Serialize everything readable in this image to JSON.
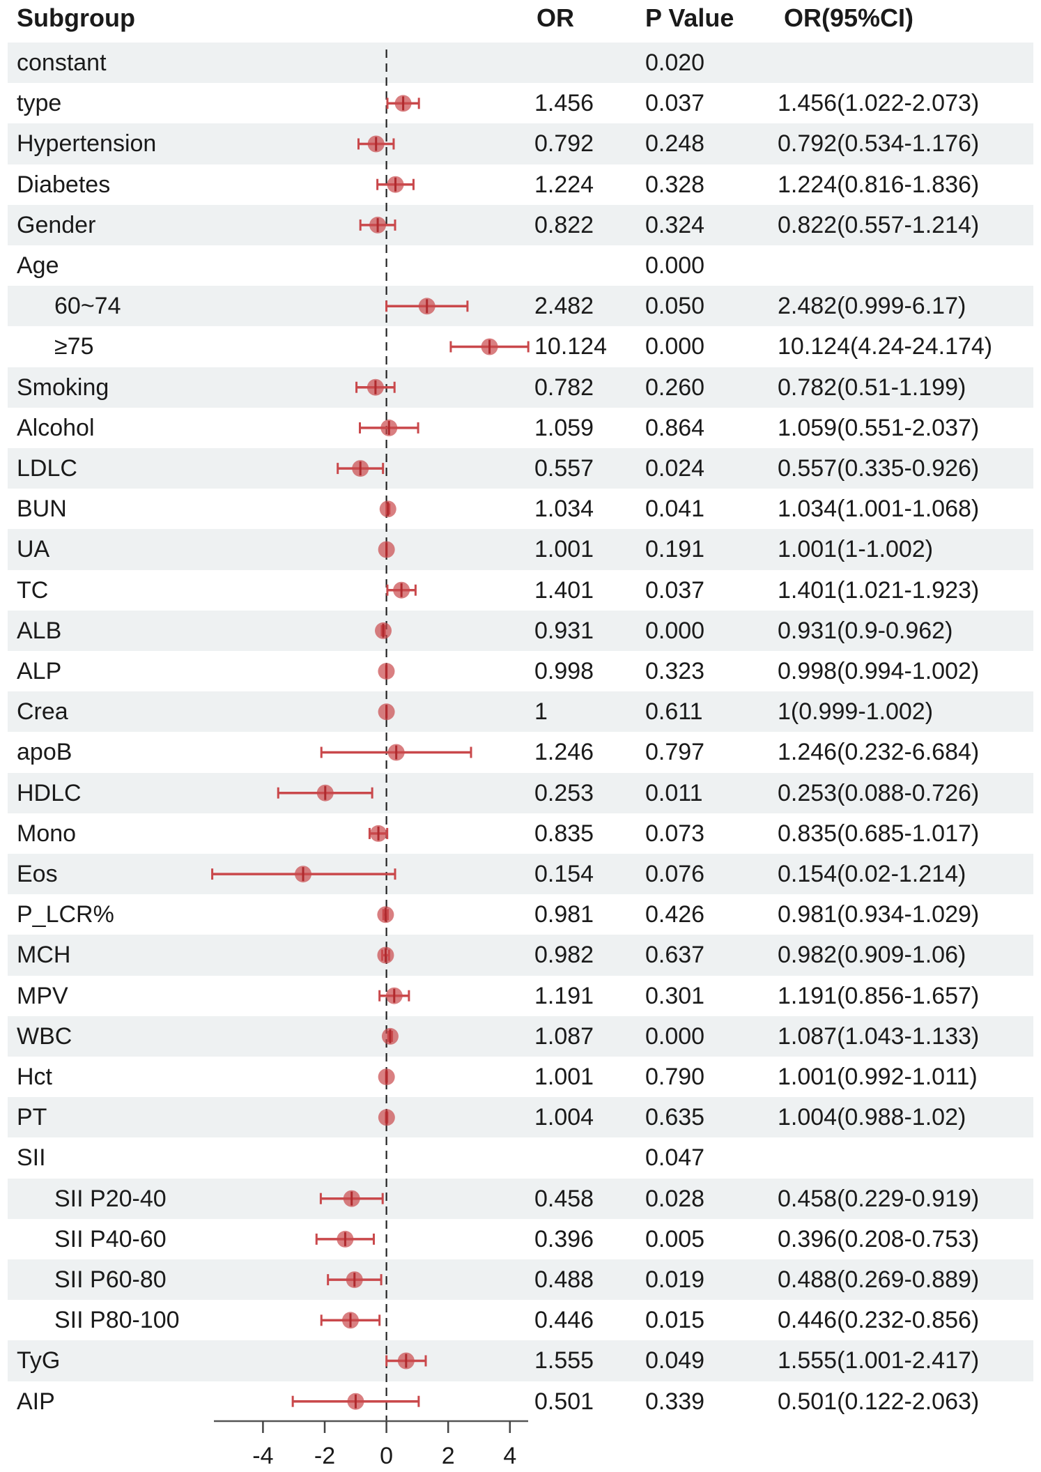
{
  "chart_data": {
    "type": "forest",
    "headers": {
      "subgroup": "Subgroup",
      "or": "OR",
      "p": "P Value",
      "ci": "OR(95%CI)"
    },
    "x_scale": "log2(OR)",
    "xticks": [
      "-4",
      "-2",
      "0",
      "2",
      "4"
    ],
    "reference_line": 0,
    "rows": [
      {
        "label": "constant",
        "indent": false,
        "or": "",
        "p": "0.020",
        "ci": "",
        "est": null,
        "lo": null,
        "hi": null
      },
      {
        "label": "type",
        "indent": false,
        "or": "1.456",
        "p": "0.037",
        "ci": "1.456(1.022-2.073)",
        "est": 1.456,
        "lo": 1.022,
        "hi": 2.073
      },
      {
        "label": "Hypertension",
        "indent": false,
        "or": "0.792",
        "p": "0.248",
        "ci": "0.792(0.534-1.176)",
        "est": 0.792,
        "lo": 0.534,
        "hi": 1.176
      },
      {
        "label": "Diabetes",
        "indent": false,
        "or": "1.224",
        "p": "0.328",
        "ci": "1.224(0.816-1.836)",
        "est": 1.224,
        "lo": 0.816,
        "hi": 1.836
      },
      {
        "label": "Gender",
        "indent": false,
        "or": "0.822",
        "p": "0.324",
        "ci": "0.822(0.557-1.214)",
        "est": 0.822,
        "lo": 0.557,
        "hi": 1.214
      },
      {
        "label": "Age",
        "indent": false,
        "or": "",
        "p": "0.000",
        "ci": "",
        "est": null,
        "lo": null,
        "hi": null
      },
      {
        "label": "60~74",
        "indent": true,
        "or": "2.482",
        "p": "0.050",
        "ci": "2.482(0.999-6.17)",
        "est": 2.482,
        "lo": 0.999,
        "hi": 6.17
      },
      {
        "label": "≥75",
        "indent": true,
        "or": "10.124",
        "p": "0.000",
        "ci": "10.124(4.24-24.174)",
        "est": 10.124,
        "lo": 4.24,
        "hi": 24.174
      },
      {
        "label": "Smoking",
        "indent": false,
        "or": "0.782",
        "p": "0.260",
        "ci": "0.782(0.51-1.199)",
        "est": 0.782,
        "lo": 0.51,
        "hi": 1.199
      },
      {
        "label": "Alcohol",
        "indent": false,
        "or": "1.059",
        "p": "0.864",
        "ci": "1.059(0.551-2.037)",
        "est": 1.059,
        "lo": 0.551,
        "hi": 2.037
      },
      {
        "label": "LDLC",
        "indent": false,
        "or": "0.557",
        "p": "0.024",
        "ci": "0.557(0.335-0.926)",
        "est": 0.557,
        "lo": 0.335,
        "hi": 0.926
      },
      {
        "label": "BUN",
        "indent": false,
        "or": "1.034",
        "p": "0.041",
        "ci": "1.034(1.001-1.068)",
        "est": 1.034,
        "lo": 1.001,
        "hi": 1.068
      },
      {
        "label": "UA",
        "indent": false,
        "or": "1.001",
        "p": "0.191",
        "ci": "1.001(1-1.002)",
        "est": 1.001,
        "lo": 1,
        "hi": 1.002
      },
      {
        "label": "TC",
        "indent": false,
        "or": "1.401",
        "p": "0.037",
        "ci": "1.401(1.021-1.923)",
        "est": 1.401,
        "lo": 1.021,
        "hi": 1.923
      },
      {
        "label": "ALB",
        "indent": false,
        "or": "0.931",
        "p": "0.000",
        "ci": "0.931(0.9-0.962)",
        "est": 0.931,
        "lo": 0.9,
        "hi": 0.962
      },
      {
        "label": "ALP",
        "indent": false,
        "or": "0.998",
        "p": "0.323",
        "ci": "0.998(0.994-1.002)",
        "est": 0.998,
        "lo": 0.994,
        "hi": 1.002
      },
      {
        "label": "Crea",
        "indent": false,
        "or": "1",
        "p": "0.611",
        "ci": "1(0.999-1.002)",
        "est": 1,
        "lo": 0.999,
        "hi": 1.002
      },
      {
        "label": "apoB",
        "indent": false,
        "or": "1.246",
        "p": "0.797",
        "ci": "1.246(0.232-6.684)",
        "est": 1.246,
        "lo": 0.232,
        "hi": 6.684
      },
      {
        "label": "HDLC",
        "indent": false,
        "or": "0.253",
        "p": "0.011",
        "ci": "0.253(0.088-0.726)",
        "est": 0.253,
        "lo": 0.088,
        "hi": 0.726
      },
      {
        "label": "Mono",
        "indent": false,
        "or": "0.835",
        "p": "0.073",
        "ci": "0.835(0.685-1.017)",
        "est": 0.835,
        "lo": 0.685,
        "hi": 1.017
      },
      {
        "label": "Eos",
        "indent": false,
        "or": "0.154",
        "p": "0.076",
        "ci": "0.154(0.02-1.214)",
        "est": 0.154,
        "lo": 0.02,
        "hi": 1.214
      },
      {
        "label": "P_LCR%",
        "indent": false,
        "or": "0.981",
        "p": "0.426",
        "ci": "0.981(0.934-1.029)",
        "est": 0.981,
        "lo": 0.934,
        "hi": 1.029
      },
      {
        "label": "MCH",
        "indent": false,
        "or": "0.982",
        "p": "0.637",
        "ci": "0.982(0.909-1.06)",
        "est": 0.982,
        "lo": 0.909,
        "hi": 1.06
      },
      {
        "label": "MPV",
        "indent": false,
        "or": "1.191",
        "p": "0.301",
        "ci": "1.191(0.856-1.657)",
        "est": 1.191,
        "lo": 0.856,
        "hi": 1.657
      },
      {
        "label": "WBC",
        "indent": false,
        "or": "1.087",
        "p": "0.000",
        "ci": "1.087(1.043-1.133)",
        "est": 1.087,
        "lo": 1.043,
        "hi": 1.133
      },
      {
        "label": "Hct",
        "indent": false,
        "or": "1.001",
        "p": "0.790",
        "ci": "1.001(0.992-1.011)",
        "est": 1.001,
        "lo": 0.992,
        "hi": 1.011
      },
      {
        "label": "PT",
        "indent": false,
        "or": "1.004",
        "p": "0.635",
        "ci": "1.004(0.988-1.02)",
        "est": 1.004,
        "lo": 0.988,
        "hi": 1.02
      },
      {
        "label": "SII",
        "indent": false,
        "or": "",
        "p": "0.047",
        "ci": "",
        "est": null,
        "lo": null,
        "hi": null
      },
      {
        "label": "SII P20-40",
        "indent": true,
        "or": "0.458",
        "p": "0.028",
        "ci": "0.458(0.229-0.919)",
        "est": 0.458,
        "lo": 0.229,
        "hi": 0.919
      },
      {
        "label": "SII P40-60",
        "indent": true,
        "or": "0.396",
        "p": "0.005",
        "ci": "0.396(0.208-0.753)",
        "est": 0.396,
        "lo": 0.208,
        "hi": 0.753
      },
      {
        "label": "SII P60-80",
        "indent": true,
        "or": "0.488",
        "p": "0.019",
        "ci": "0.488(0.269-0.889)",
        "est": 0.488,
        "lo": 0.269,
        "hi": 0.889
      },
      {
        "label": "SII P80-100",
        "indent": true,
        "or": "0.446",
        "p": "0.015",
        "ci": "0.446(0.232-0.856)",
        "est": 0.446,
        "lo": 0.232,
        "hi": 0.856
      },
      {
        "label": "TyG",
        "indent": false,
        "or": "1.555",
        "p": "0.049",
        "ci": "1.555(1.001-2.417)",
        "est": 1.555,
        "lo": 1.001,
        "hi": 2.417
      },
      {
        "label": "AIP",
        "indent": false,
        "or": "0.501",
        "p": "0.339",
        "ci": "0.501(0.122-2.063)",
        "est": 0.501,
        "lo": 0.122,
        "hi": 2.063
      }
    ],
    "colors": {
      "marker": "#c9484b",
      "shade": "#eef1f2"
    }
  }
}
